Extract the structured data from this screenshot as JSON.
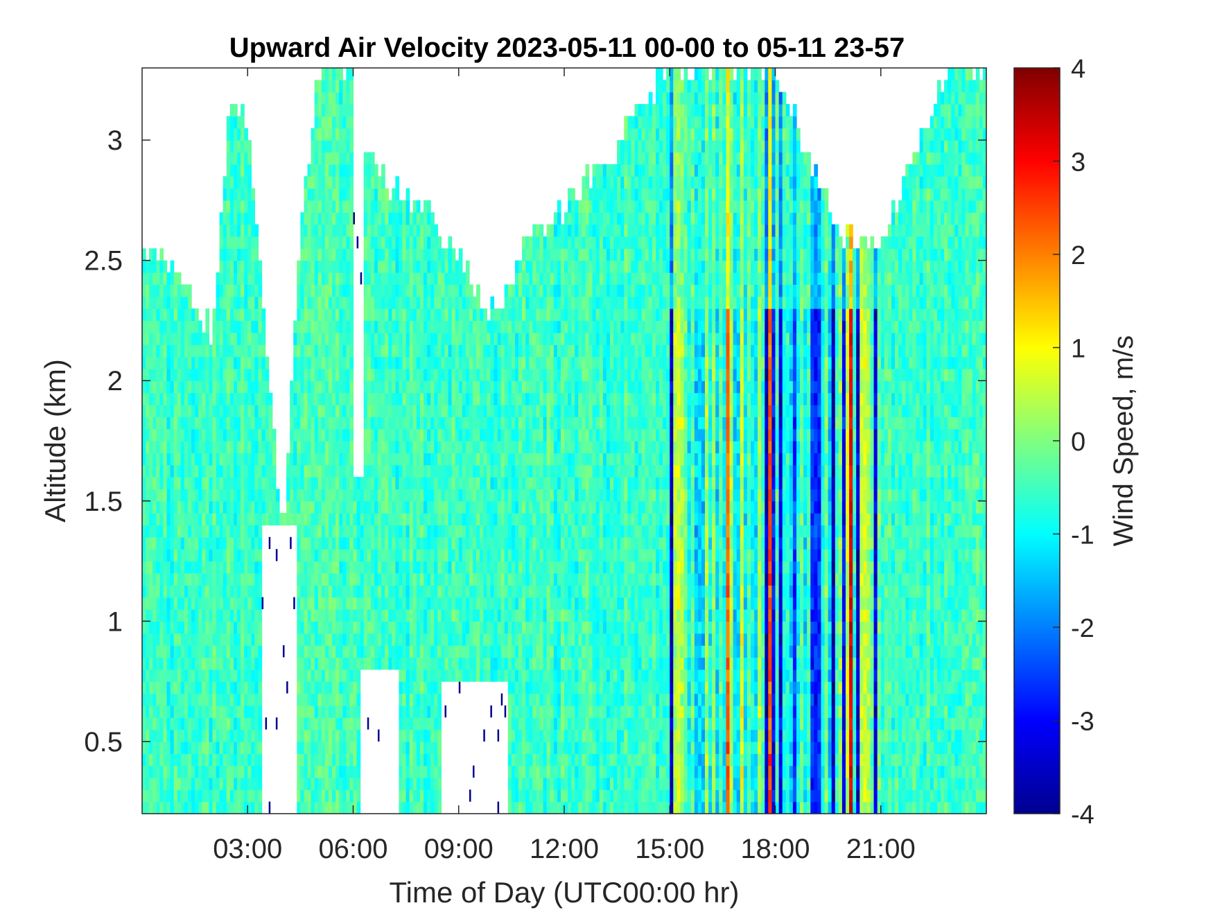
{
  "chart_data": {
    "type": "heatmap",
    "title": "Upward Air Velocity 2023-05-11 00-00 to 05-11 23-57",
    "xlabel": "Time of Day (UTC00:00 hr)",
    "ylabel": "Altitude (km)",
    "xlim_hours": [
      0,
      24
    ],
    "ylim_km": [
      0.2,
      3.3
    ],
    "x_ticks": [
      {
        "value": 3,
        "label": "03:00"
      },
      {
        "value": 6,
        "label": "06:00"
      },
      {
        "value": 9,
        "label": "09:00"
      },
      {
        "value": 12,
        "label": "12:00"
      },
      {
        "value": 15,
        "label": "15:00"
      },
      {
        "value": 18,
        "label": "18:00"
      },
      {
        "value": 21,
        "label": "21:00"
      }
    ],
    "y_ticks": [
      {
        "value": 0.5,
        "label": "0.5"
      },
      {
        "value": 1,
        "label": "1"
      },
      {
        "value": 1.5,
        "label": "1.5"
      },
      {
        "value": 2,
        "label": "2"
      },
      {
        "value": 2.5,
        "label": "2.5"
      },
      {
        "value": 3,
        "label": "3"
      }
    ],
    "colorbar": {
      "label": "Wind Speed, m/s",
      "colormap": "jet",
      "clim": [
        -4,
        4
      ],
      "ticks": [
        {
          "value": 4,
          "label": "4"
        },
        {
          "value": 3,
          "label": "3"
        },
        {
          "value": 2,
          "label": "2"
        },
        {
          "value": 1,
          "label": "1"
        },
        {
          "value": 0,
          "label": "0"
        },
        {
          "value": -1,
          "label": "-1"
        },
        {
          "value": -2,
          "label": "-2"
        },
        {
          "value": -3,
          "label": "-3"
        },
        {
          "value": -4,
          "label": "-4"
        }
      ]
    },
    "grid": false,
    "data_top_km_by_hour": [
      [
        0,
        2.55
      ],
      [
        1,
        2.45
      ],
      [
        2,
        2.2
      ],
      [
        2.5,
        3.15
      ],
      [
        3,
        3.1
      ],
      [
        3.5,
        2.2
      ],
      [
        4,
        1.35
      ],
      [
        4.5,
        2.6
      ],
      [
        5,
        3.3
      ],
      [
        6,
        3.3
      ],
      [
        6.5,
        2.9
      ],
      [
        7,
        2.8
      ],
      [
        8,
        2.75
      ],
      [
        9,
        2.5
      ],
      [
        10,
        2.3
      ],
      [
        11,
        2.6
      ],
      [
        12,
        2.7
      ],
      [
        13,
        2.9
      ],
      [
        14,
        3.1
      ],
      [
        15,
        3.3
      ],
      [
        16,
        3.3
      ],
      [
        17,
        3.3
      ],
      [
        18,
        3.3
      ],
      [
        19,
        2.9
      ],
      [
        20,
        2.6
      ],
      [
        21,
        2.55
      ],
      [
        22,
        3.0
      ],
      [
        23,
        3.3
      ],
      [
        24,
        3.3
      ]
    ],
    "gap_regions": [
      {
        "x_hours": [
          3.4,
          4.4
        ],
        "y_km": [
          0.2,
          1.4
        ]
      },
      {
        "x_hours": [
          6.2,
          7.3
        ],
        "y_km": [
          0.2,
          0.8
        ]
      },
      {
        "x_hours": [
          6.0,
          6.3
        ],
        "y_km": [
          1.6,
          3.3
        ]
      },
      {
        "x_hours": [
          8.5,
          10.4
        ],
        "y_km": [
          0.2,
          0.75
        ]
      },
      {
        "x_hours": [
          11.5,
          13.5
        ],
        "y_km": [
          2.9,
          3.3
        ]
      }
    ],
    "strong_updraft_zone": {
      "x_hours": [
        16.0,
        20.5
      ],
      "y_km": [
        0.2,
        2.2
      ],
      "peak_ms": 3.5
    },
    "strong_downdraft_zone": {
      "x_hours": [
        15.0,
        21.0
      ],
      "y_km": [
        0.2,
        2.7
      ],
      "peak_ms": -3.5
    }
  }
}
